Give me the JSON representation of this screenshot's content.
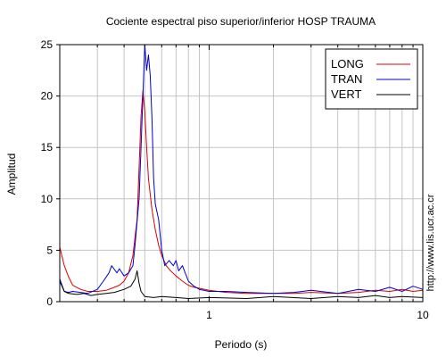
{
  "chart_data": {
    "type": "line",
    "title": "Cociente espectral piso superior/inferior  HOSP TRAUMA",
    "xlabel": "Periodo (s)",
    "ylabel": "Amplitud",
    "xscale": "log",
    "xlim": [
      0.2,
      10
    ],
    "ylim": [
      0,
      25
    ],
    "y_ticks": [
      0,
      5,
      10,
      15,
      20,
      25
    ],
    "x_tick_labels": [
      {
        "value": 1,
        "label": "1"
      },
      {
        "value": 10,
        "label": "10"
      }
    ],
    "grid": true,
    "legend_position": "top-right",
    "watermark": "http://www.lis.ucr.ac.cr",
    "series": [
      {
        "name": "LONG",
        "color": "#dd0000",
        "points": [
          [
            0.2,
            5.3
          ],
          [
            0.21,
            3.5
          ],
          [
            0.22,
            2.4
          ],
          [
            0.23,
            1.6
          ],
          [
            0.25,
            1.2
          ],
          [
            0.27,
            1.0
          ],
          [
            0.3,
            1.0
          ],
          [
            0.33,
            1.1
          ],
          [
            0.35,
            1.3
          ],
          [
            0.38,
            1.6
          ],
          [
            0.4,
            2.0
          ],
          [
            0.42,
            2.8
          ],
          [
            0.44,
            4.5
          ],
          [
            0.46,
            8.0
          ],
          [
            0.47,
            13.0
          ],
          [
            0.48,
            18.0
          ],
          [
            0.49,
            20.5
          ],
          [
            0.5,
            18.5
          ],
          [
            0.51,
            15.0
          ],
          [
            0.52,
            12.0
          ],
          [
            0.54,
            9.0
          ],
          [
            0.56,
            7.0
          ],
          [
            0.58,
            5.5
          ],
          [
            0.6,
            4.5
          ],
          [
            0.63,
            3.5
          ],
          [
            0.66,
            3.0
          ],
          [
            0.7,
            2.5
          ],
          [
            0.75,
            2.0
          ],
          [
            0.8,
            1.6
          ],
          [
            0.85,
            1.4
          ],
          [
            0.9,
            1.3
          ],
          [
            1.0,
            1.1
          ],
          [
            1.2,
            0.9
          ],
          [
            1.5,
            0.8
          ],
          [
            2.0,
            0.8
          ],
          [
            2.5,
            0.8
          ],
          [
            3.0,
            0.9
          ],
          [
            4.0,
            0.8
          ],
          [
            5.0,
            0.9
          ],
          [
            6.0,
            1.1
          ],
          [
            7.0,
            1.0
          ],
          [
            8.0,
            1.2
          ],
          [
            9.0,
            1.0
          ],
          [
            10.0,
            1.1
          ]
        ]
      },
      {
        "name": "TRAN",
        "color": "#0000cc",
        "points": [
          [
            0.2,
            2.2
          ],
          [
            0.21,
            1.0
          ],
          [
            0.22,
            0.9
          ],
          [
            0.23,
            1.0
          ],
          [
            0.25,
            0.9
          ],
          [
            0.27,
            0.8
          ],
          [
            0.3,
            1.2
          ],
          [
            0.32,
            2.0
          ],
          [
            0.34,
            2.8
          ],
          [
            0.35,
            3.5
          ],
          [
            0.37,
            2.8
          ],
          [
            0.38,
            3.2
          ],
          [
            0.4,
            2.5
          ],
          [
            0.42,
            2.8
          ],
          [
            0.44,
            3.5
          ],
          [
            0.45,
            5.5
          ],
          [
            0.47,
            10.0
          ],
          [
            0.48,
            15.0
          ],
          [
            0.49,
            20.0
          ],
          [
            0.5,
            25.0
          ],
          [
            0.51,
            22.5
          ],
          [
            0.52,
            24.0
          ],
          [
            0.53,
            22.0
          ],
          [
            0.54,
            18.0
          ],
          [
            0.55,
            12.0
          ],
          [
            0.56,
            9.5
          ],
          [
            0.58,
            8.0
          ],
          [
            0.6,
            5.0
          ],
          [
            0.62,
            3.5
          ],
          [
            0.65,
            4.0
          ],
          [
            0.68,
            3.5
          ],
          [
            0.7,
            4.0
          ],
          [
            0.72,
            3.0
          ],
          [
            0.75,
            3.5
          ],
          [
            0.8,
            2.0
          ],
          [
            0.85,
            1.5
          ],
          [
            0.9,
            1.2
          ],
          [
            1.0,
            1.0
          ],
          [
            1.2,
            1.0
          ],
          [
            1.5,
            0.9
          ],
          [
            2.0,
            0.8
          ],
          [
            2.5,
            0.9
          ],
          [
            3.0,
            1.1
          ],
          [
            4.0,
            0.8
          ],
          [
            5.0,
            1.2
          ],
          [
            6.0,
            1.0
          ],
          [
            7.0,
            1.4
          ],
          [
            8.0,
            1.0
          ],
          [
            9.0,
            1.5
          ],
          [
            10.0,
            1.2
          ]
        ]
      },
      {
        "name": "VERT",
        "color": "#000000",
        "points": [
          [
            0.2,
            2.0
          ],
          [
            0.21,
            1.0
          ],
          [
            0.22,
            0.8
          ],
          [
            0.24,
            0.7
          ],
          [
            0.26,
            0.8
          ],
          [
            0.28,
            0.6
          ],
          [
            0.3,
            0.7
          ],
          [
            0.33,
            0.8
          ],
          [
            0.36,
            0.9
          ],
          [
            0.4,
            1.2
          ],
          [
            0.43,
            1.5
          ],
          [
            0.45,
            2.2
          ],
          [
            0.46,
            3.0
          ],
          [
            0.47,
            1.8
          ],
          [
            0.48,
            1.0
          ],
          [
            0.5,
            0.5
          ],
          [
            0.55,
            0.4
          ],
          [
            0.6,
            0.5
          ],
          [
            0.7,
            0.4
          ],
          [
            0.8,
            0.3
          ],
          [
            1.0,
            0.4
          ],
          [
            1.5,
            0.3
          ],
          [
            2.0,
            0.5
          ],
          [
            3.0,
            0.3
          ],
          [
            4.0,
            0.5
          ],
          [
            5.0,
            0.4
          ],
          [
            6.0,
            0.6
          ],
          [
            7.0,
            0.4
          ],
          [
            8.0,
            0.5
          ],
          [
            10.0,
            0.4
          ]
        ]
      }
    ]
  }
}
